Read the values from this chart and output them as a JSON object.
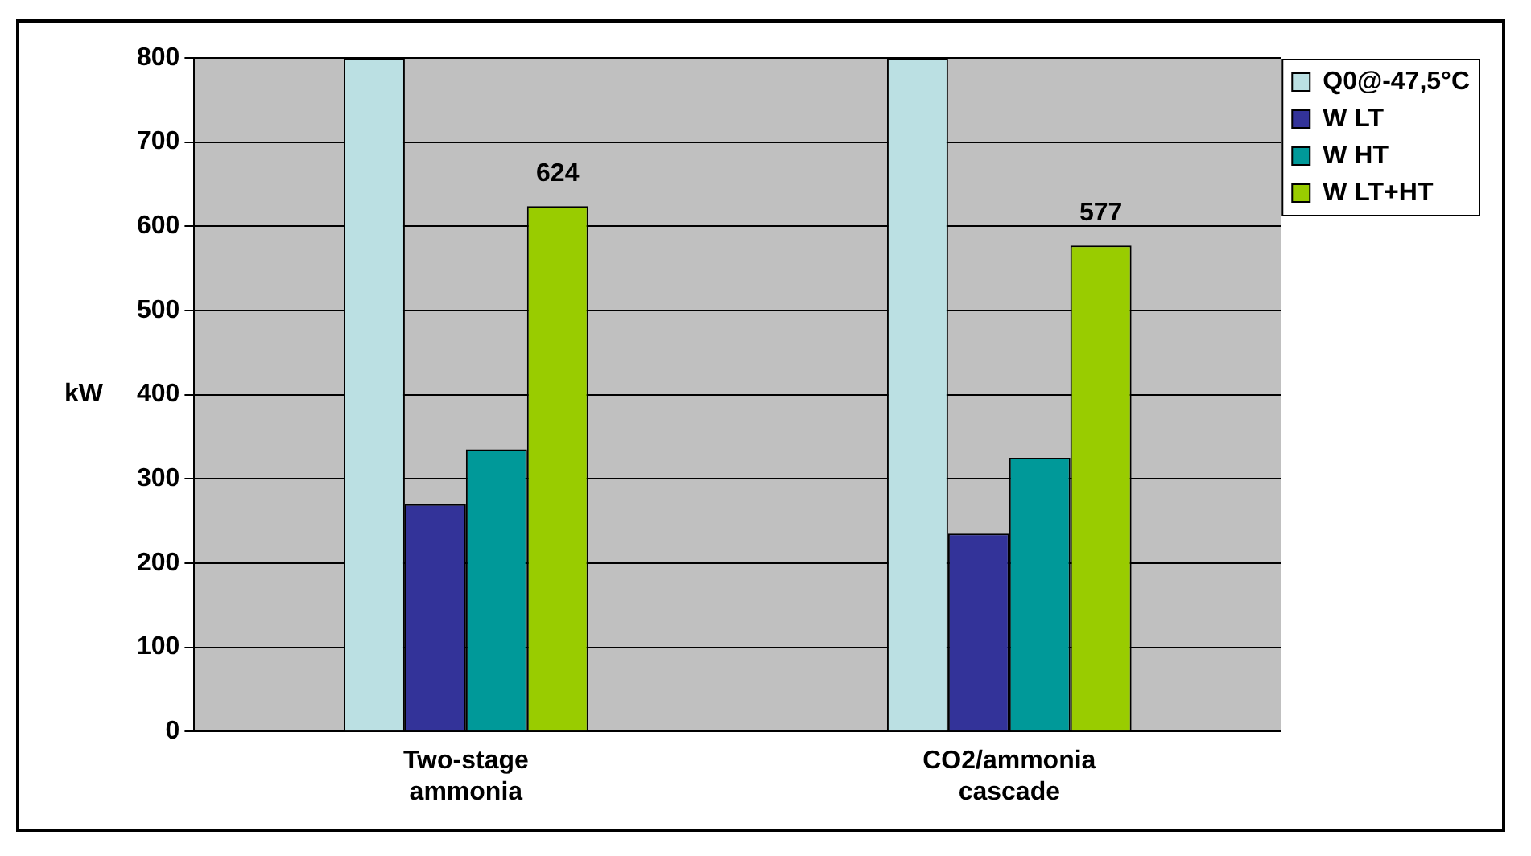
{
  "chart_data": {
    "type": "bar",
    "ylabel": "kW",
    "categories": [
      "Two-stage ammonia",
      "CO2/ammonia cascade"
    ],
    "series": [
      {
        "name": "Q0@-47,5°C",
        "color": "#bbe0e3",
        "values": [
          800,
          800
        ]
      },
      {
        "name": "W LT",
        "color": "#333399",
        "values": [
          270,
          235
        ]
      },
      {
        "name": "W HT",
        "color": "#009999",
        "values": [
          335,
          325
        ]
      },
      {
        "name": "W LT+HT",
        "color": "#99cc00",
        "values": [
          624,
          577
        ],
        "value_labels": [
          "624",
          "577"
        ]
      }
    ],
    "ylim": [
      0,
      800
    ],
    "yticks": [
      0,
      100,
      200,
      300,
      400,
      500,
      600,
      700,
      800
    ],
    "grid": "y",
    "legend": "right"
  }
}
